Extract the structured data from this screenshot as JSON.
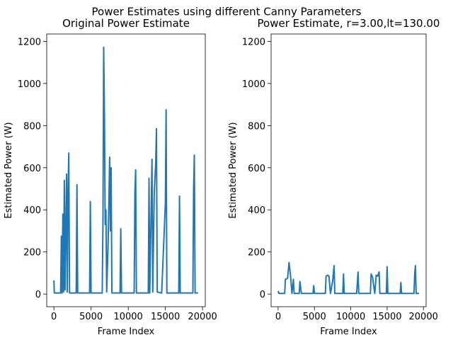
{
  "title": "Power Estimates using different Canny Parameters",
  "chart_data": [
    {
      "type": "line",
      "title": "Original Power Estimate",
      "xlabel": "Frame Index",
      "ylabel": "Estimated Power (W)",
      "xlim": [
        -970,
        20370
      ],
      "ylim": [
        -60,
        1235
      ],
      "xticks": [
        0,
        5000,
        10000,
        15000,
        20000
      ],
      "yticks": [
        0,
        200,
        400,
        600,
        800,
        1000,
        1200
      ],
      "series": [
        {
          "color": "#1f77b4",
          "x": [
            0,
            50,
            900,
            1000,
            1100,
            1200,
            1300,
            1400,
            1500,
            1700,
            1800,
            1900,
            2000,
            2100,
            3000,
            3100,
            3200,
            4800,
            4900,
            5000,
            6500,
            6600,
            6700,
            6800,
            6900,
            7000,
            7100,
            7300,
            7500,
            7600,
            7700,
            7800,
            8900,
            9000,
            9100,
            10800,
            10900,
            11000,
            11100,
            12700,
            12800,
            12900,
            13200,
            13300,
            13500,
            13700,
            13800,
            13900,
            14500,
            15000,
            15100,
            15200,
            16800,
            16900,
            17000,
            18700,
            18800,
            18900,
            19000,
            19400
          ],
          "values": [
            65,
            5,
            5,
            275,
            5,
            380,
            10,
            540,
            20,
            570,
            10,
            490,
            670,
            5,
            5,
            520,
            5,
            5,
            440,
            5,
            5,
            340,
            1172,
            850,
            330,
            400,
            10,
            250,
            650,
            300,
            600,
            5,
            5,
            310,
            5,
            5,
            480,
            590,
            5,
            5,
            550,
            5,
            640,
            10,
            480,
            620,
            785,
            10,
            5,
            430,
            875,
            5,
            5,
            465,
            5,
            5,
            500,
            660,
            5,
            5
          ]
        }
      ]
    },
    {
      "type": "line",
      "title": "Power Estimate, r=3.00,lt=130.00",
      "xlabel": "Frame Index",
      "ylabel": "Estimated Power (W)",
      "xlim": [
        -970,
        20370
      ],
      "ylim": [
        -60,
        1235
      ],
      "xticks": [
        0,
        5000,
        10000,
        15000,
        20000
      ],
      "yticks": [
        0,
        200,
        400,
        600,
        800,
        1000,
        1200
      ],
      "series": [
        {
          "color": "#1f77b4",
          "x": [
            0,
            100,
            900,
            1000,
            1300,
            1500,
            1700,
            1900,
            2100,
            2200,
            2900,
            3000,
            3200,
            4800,
            4900,
            5000,
            6500,
            6600,
            6800,
            7000,
            7200,
            7500,
            7700,
            7800,
            8900,
            9000,
            9100,
            10800,
            10900,
            11000,
            11100,
            12700,
            12800,
            13000,
            13300,
            13500,
            13700,
            13900,
            14000,
            14900,
            15000,
            15100,
            16800,
            16900,
            17000,
            18700,
            18800,
            18900,
            19000,
            19400
          ],
          "values": [
            15,
            3,
            3,
            70,
            75,
            150,
            90,
            3,
            70,
            3,
            3,
            60,
            3,
            3,
            40,
            3,
            3,
            85,
            90,
            85,
            3,
            60,
            135,
            3,
            3,
            95,
            3,
            3,
            50,
            105,
            3,
            3,
            95,
            80,
            3,
            90,
            85,
            105,
            3,
            3,
            130,
            3,
            3,
            55,
            3,
            3,
            95,
            135,
            3,
            3
          ]
        }
      ]
    }
  ]
}
